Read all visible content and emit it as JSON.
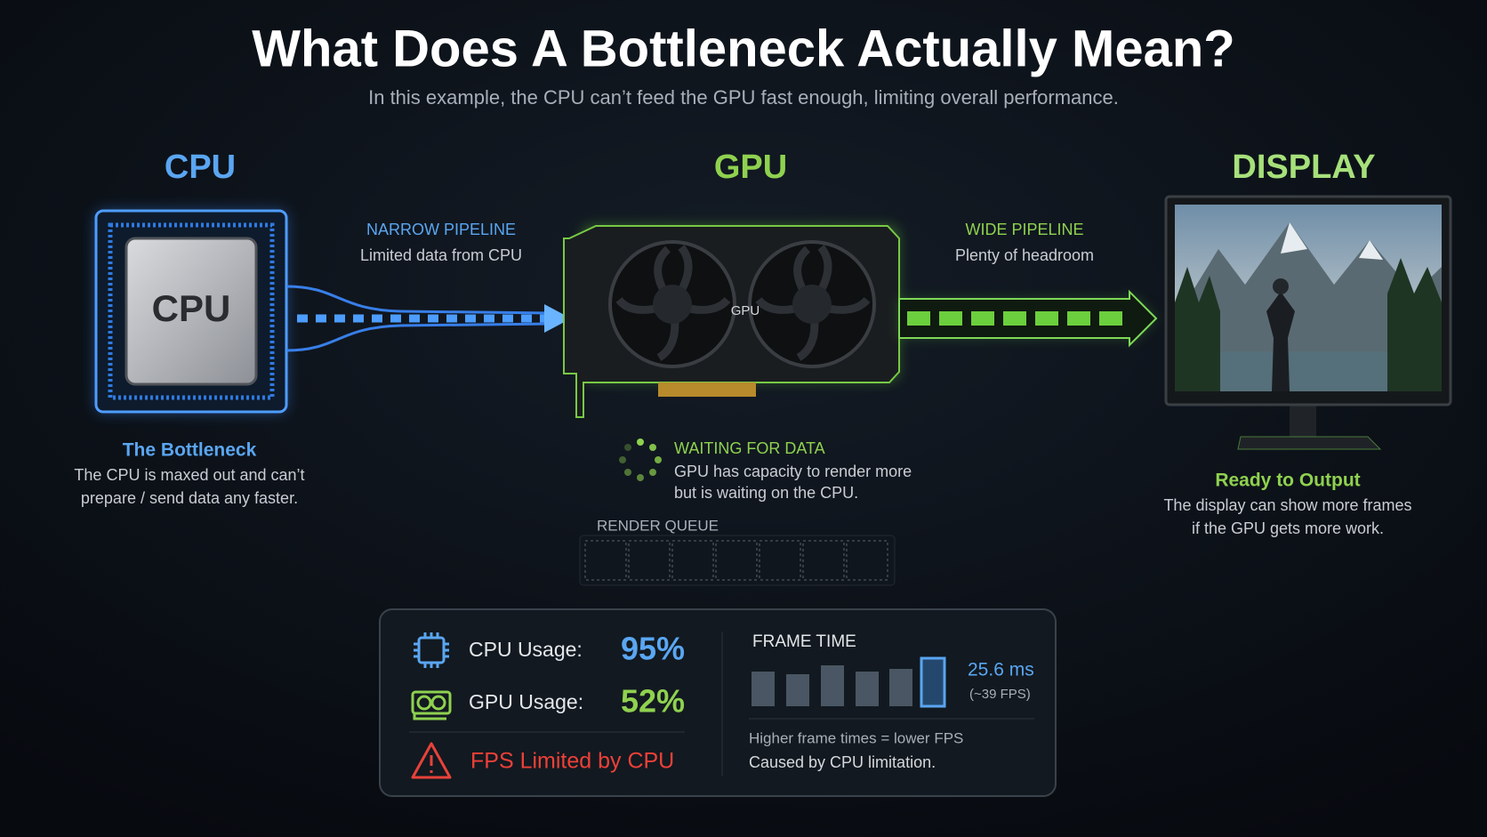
{
  "header": {
    "title": "What Does A Bottleneck Actually Mean?",
    "subtitle": "In this example, the CPU can’t feed the GPU fast enough, limiting overall performance."
  },
  "cpu": {
    "heading": "CPU",
    "chip_label": "CPU",
    "caption_title": "The Bottleneck",
    "caption_lines": [
      "The CPU is maxed out and can’t",
      "prepare / send data any faster."
    ]
  },
  "pipeline_narrow": {
    "title": "NARROW PIPELINE",
    "subtitle": "Limited data from CPU"
  },
  "gpu": {
    "heading": "GPU",
    "card_label": "GPU",
    "status_title": "WAITING FOR DATA",
    "status_lines": [
      "GPU has capacity to render more",
      "but is waiting on the CPU."
    ],
    "queue_label": "RENDER QUEUE"
  },
  "pipeline_wide": {
    "title": "WIDE PIPELINE",
    "subtitle": "Plenty of headroom"
  },
  "display": {
    "heading": "DISPLAY",
    "caption_title": "Ready to Output",
    "caption_lines": [
      "The display can show more frames",
      "if the GPU gets more work."
    ]
  },
  "stats": {
    "cpu_label": "CPU Usage:",
    "cpu_value": "95%",
    "gpu_label": "GPU Usage:",
    "gpu_value": "52%",
    "warning": "FPS Limited by CPU",
    "frame_time": {
      "title": "FRAME TIME",
      "value": "25.6 ms",
      "fps": "(~39 FPS)",
      "notes": [
        "Higher frame times = lower FPS",
        "Caused by CPU limitation."
      ]
    }
  }
}
